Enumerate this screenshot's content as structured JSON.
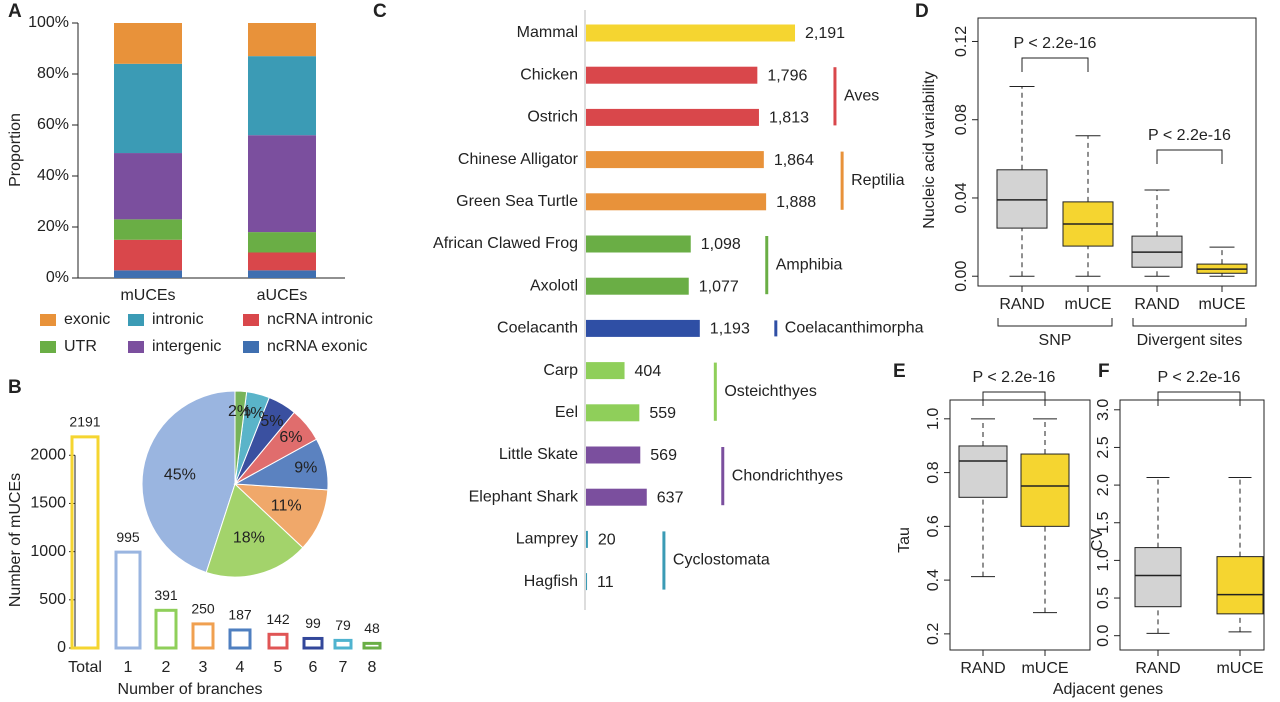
{
  "chart_data": [
    {
      "type": "stacked_bar",
      "panel": "A",
      "ylabel": "Proportion",
      "categories": [
        "mUCEs",
        "aUCEs"
      ],
      "ylim": [
        0,
        100
      ],
      "yticks": [
        {
          "value": 0,
          "label": "0%"
        },
        {
          "value": 20,
          "label": "20%"
        },
        {
          "value": 40,
          "label": "40%"
        },
        {
          "value": 60,
          "label": "60%"
        },
        {
          "value": 80,
          "label": "80%"
        },
        {
          "value": 100,
          "label": "100%"
        }
      ],
      "series": [
        {
          "name": "ncRNA exonic",
          "color": "#3f6fb0",
          "values": [
            3,
            3
          ]
        },
        {
          "name": "ncRNA intronic",
          "color": "#d9474b",
          "values": [
            12,
            7
          ]
        },
        {
          "name": "UTR",
          "color": "#6aae45",
          "values": [
            8,
            8
          ]
        },
        {
          "name": "intergenic",
          "color": "#7b4f9e",
          "values": [
            26,
            38
          ]
        },
        {
          "name": "intronic",
          "color": "#3b9bb5",
          "values": [
            35,
            31
          ]
        },
        {
          "name": "exonic",
          "color": "#e8923a",
          "values": [
            16,
            13
          ]
        }
      ]
    },
    {
      "type": "bar",
      "panel": "B",
      "xlabel": "Number of branches",
      "ylabel": "Number of mUCEs",
      "categories": [
        "Total",
        "1",
        "2",
        "3",
        "4",
        "5",
        "6",
        "7",
        "8"
      ],
      "values": [
        2191,
        995,
        391,
        250,
        187,
        142,
        99,
        79,
        48
      ],
      "colors": [
        "#f5d530",
        "#9ab5e0",
        "#8fcf5a",
        "#f0a050",
        "#4f7fc0",
        "#e05555",
        "#33479a",
        "#4fb3cf",
        "#6aae45"
      ],
      "ylim": [
        0,
        2200
      ],
      "yticks": [
        0,
        500,
        1000,
        1500,
        2000
      ]
    },
    {
      "type": "pie",
      "values": [
        45,
        18,
        11,
        9,
        6,
        5,
        4,
        2
      ],
      "value_labels": [
        "45%",
        "18%",
        "11%",
        "9%",
        "6%",
        "5%",
        "4%",
        "2%"
      ],
      "colors": [
        "#9ab5e0",
        "#a3d36b",
        "#f0a86a",
        "#5b82c0",
        "#e06d6d",
        "#3a50a0",
        "#5ab4c9",
        "#77b35a"
      ]
    },
    {
      "type": "hbar",
      "panel": "C",
      "series": [
        {
          "color": "#f5d530",
          "categories": [
            "Mammal"
          ],
          "values": [
            2191
          ],
          "value_labels": [
            "2,191"
          ]
        },
        {
          "name": "Aves",
          "color": "#d9474b",
          "categories": [
            "Chicken",
            "Ostrich"
          ],
          "values": [
            1796,
            1813
          ],
          "value_labels": [
            "1,796",
            "1,813"
          ]
        },
        {
          "name": "Reptilia",
          "color": "#e8923a",
          "categories": [
            "Chinese Alligator",
            "Green Sea Turtle"
          ],
          "values": [
            1864,
            1888
          ],
          "value_labels": [
            "1,864",
            "1,888"
          ]
        },
        {
          "name": "Amphibia",
          "color": "#6aae45",
          "categories": [
            "African Clawed Frog",
            "Axolotl"
          ],
          "values": [
            1098,
            1077
          ],
          "value_labels": [
            "1,098",
            "1,077"
          ]
        },
        {
          "name": "Coelacanthimorpha",
          "color": "#2f4fa5",
          "categories": [
            "Coelacanth"
          ],
          "values": [
            1193
          ],
          "value_labels": [
            "1,193"
          ]
        },
        {
          "name": "Osteichthyes",
          "color": "#8fcf5a",
          "categories": [
            "Carp",
            "Eel"
          ],
          "values": [
            404,
            559
          ]
        },
        {
          "name": "Chondrichthyes",
          "color": "#7b4f9e",
          "categories": [
            "Little Skate",
            "Elephant Shark"
          ],
          "values": [
            569,
            637
          ]
        },
        {
          "name": "Cyclostomata",
          "color": "#3b9bb5",
          "categories": [
            "Lamprey",
            "Hagfish"
          ],
          "values": [
            20,
            11
          ]
        }
      ]
    },
    {
      "type": "box",
      "panel": "D",
      "ylabel": "Nucleic acid variability",
      "categories": [
        "RAND",
        "mUCE",
        "RAND",
        "mUCE"
      ],
      "group_labels": [
        "SNP",
        "Divergent sites"
      ],
      "annotations": [
        "P < 2.2e-16",
        "P < 2.2e-16"
      ],
      "colors": [
        "#d3d3d3",
        "#f5d530",
        "#d3d3d3",
        "#f5d530"
      ],
      "ylim": [
        -0.005,
        0.132
      ],
      "yticks": [
        {
          "value": 0,
          "label": "0.00"
        },
        {
          "value": 0.04,
          "label": "0.04"
        },
        {
          "value": 0.08,
          "label": "0.08"
        },
        {
          "value": 0.12,
          "label": "0.12"
        }
      ],
      "boxes": [
        {
          "min": 0,
          "q1": 0.0246,
          "median": 0.039,
          "q3": 0.0544,
          "max": 0.097
        },
        {
          "min": 0,
          "q1": 0.0154,
          "median": 0.0267,
          "q3": 0.038,
          "max": 0.0718
        },
        {
          "min": 0,
          "q1": 0.0046,
          "median": 0.0123,
          "q3": 0.0205,
          "max": 0.0441
        },
        {
          "min": 0,
          "q1": 0.0015,
          "median": 0.0036,
          "q3": 0.0062,
          "max": 0.0149
        }
      ]
    },
    {
      "type": "box",
      "panel": "E",
      "ylabel": "Tau",
      "xlabel": "Adjacent genes",
      "categories": [
        "RAND",
        "mUCE"
      ],
      "annotations": [
        "P < 2.2e-16"
      ],
      "colors": [
        "#d3d3d3",
        "#f5d530"
      ],
      "ylim": [
        0.14,
        1.07
      ],
      "yticks": [
        0.2,
        0.4,
        0.6,
        0.8,
        {
          "value": 1,
          "label": "1.0"
        }
      ],
      "boxes": [
        {
          "min": 0.413,
          "q1": 0.708,
          "median": 0.843,
          "q3": 0.899,
          "max": 1
        },
        {
          "min": 0.279,
          "q1": 0.6,
          "median": 0.75,
          "q3": 0.869,
          "max": 1
        }
      ]
    },
    {
      "type": "box",
      "panel": "F",
      "ylabel": "CV",
      "categories": [
        "RAND",
        "mUCE"
      ],
      "annotations": [
        "P < 2.2e-16"
      ],
      "colors": [
        "#d3d3d3",
        "#f5d530"
      ],
      "ylim": [
        -0.19,
        3.13
      ],
      "yticks": [
        {
          "value": 0,
          "label": "0.0"
        },
        0.5,
        {
          "value": 1,
          "label": "1.0"
        },
        1.5,
        {
          "value": 2,
          "label": "2.0"
        },
        2.5,
        {
          "value": 3,
          "label": "3.0"
        }
      ],
      "boxes": [
        {
          "min": 0.03,
          "q1": 0.385,
          "median": 0.8,
          "q3": 1.17,
          "max": 2.1
        },
        {
          "min": 0.05,
          "q1": 0.29,
          "median": 0.545,
          "q3": 1.05,
          "max": 2.1
        }
      ]
    }
  ]
}
